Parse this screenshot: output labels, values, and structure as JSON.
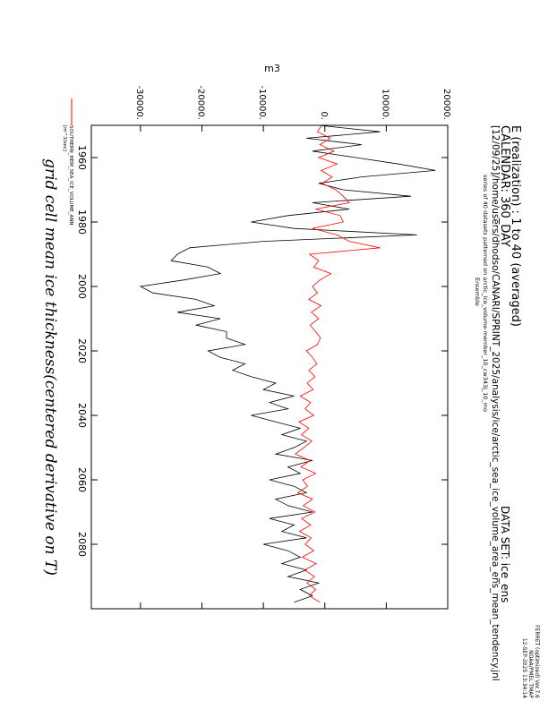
{
  "header": {
    "realization": "E (realization) : 1 to 40 (averaged)",
    "calendar": "CALENDAR: 360_DAY",
    "path": "[12/09/25]/home/users/dhodso/CANARI/SPRINT_2025/analysis/ice/arctic_sea_ice_volume_area_ens_mean_tendency.jnl",
    "series_note": "series of 40 datasets patterned on arctic_ice_volume-member_10_cw343j_10_mo",
    "ensemble": "Ensemble",
    "dataset": "DATA SET: ice_ens",
    "ferret_version": "FERRET (optimized) Ver.7.6",
    "ferret_env": "NOAA/PMEL TMAP",
    "ferret_date": "12-SEP-2025 13:34:14"
  },
  "legend": {
    "label": "SOUTHERN_HEM_SEA_ICE_VOLUME_ANN",
    "units": "[m^3/sec]"
  },
  "chart_data": {
    "type": "line",
    "title": "grid cell mean ice thickness(centered derivative on T)",
    "xlabel": "",
    "ylabel": "m3",
    "xlim": [
      1950,
      2100
    ],
    "ylim": [
      -38000,
      20000
    ],
    "x_ticks": [
      "1960",
      "1980",
      "2000",
      "2020",
      "2040",
      "2060",
      "2080"
    ],
    "x_tick_values": [
      1960,
      1980,
      2000,
      2020,
      2040,
      2060,
      2080
    ],
    "y_ticks": [
      "20000.",
      "10000.",
      "0.",
      "-10000.",
      "-20000.",
      "-30000."
    ],
    "y_tick_values": [
      20000,
      10000,
      0,
      -10000,
      -20000,
      -30000
    ],
    "x": [
      1950,
      1952,
      1954,
      1956,
      1958,
      1960,
      1962,
      1964,
      1966,
      1968,
      1970,
      1972,
      1974,
      1976,
      1978,
      1980,
      1982,
      1984,
      1986,
      1988,
      1990,
      1992,
      1994,
      1996,
      1998,
      2000,
      2002,
      2004,
      2006,
      2008,
      2010,
      2012,
      2014,
      2016,
      2018,
      2020,
      2022,
      2024,
      2026,
      2028,
      2030,
      2032,
      2034,
      2036,
      2038,
      2040,
      2042,
      2044,
      2046,
      2048,
      2050,
      2052,
      2054,
      2056,
      2058,
      2060,
      2062,
      2064,
      2066,
      2068,
      2070,
      2072,
      2074,
      2076,
      2078,
      2080,
      2082,
      2084,
      2086,
      2088,
      2090,
      2092,
      2094,
      2096,
      2098
    ],
    "series": [
      {
        "color": "#000000",
        "values": [
          -1000,
          9000,
          -3000,
          6000,
          -2000,
          5000,
          12000,
          18000,
          6000,
          -1000,
          3000,
          14000,
          -2000,
          4000,
          -6000,
          -12000,
          -5000,
          15000,
          -10000,
          -22000,
          -24000,
          -25000,
          -19000,
          -17000,
          -23000,
          -30000,
          -28000,
          -21000,
          -18000,
          -24000,
          -17000,
          -21000,
          -16000,
          -16000,
          -13000,
          -19000,
          -17000,
          -13000,
          -15000,
          -12000,
          -8000,
          -10000,
          -5000,
          -9000,
          -6000,
          -12000,
          -8000,
          -4000,
          -7000,
          -3000,
          -5000,
          -8000,
          -2000,
          -6000,
          -4000,
          -9000,
          -5000,
          -3000,
          -8000,
          -6000,
          -2000,
          -9000,
          -5000,
          -7000,
          -3000,
          -10000,
          -6000,
          -4000,
          -7000,
          -3000,
          -6000,
          -1000,
          -4000,
          -2000,
          -5000
        ]
      },
      {
        "color": "#ff0000",
        "values": [
          -500,
          -1200,
          900,
          -800,
          1500,
          -1000,
          2000,
          -600,
          1200,
          -400,
          1800,
          3000,
          4000,
          -1500,
          2500,
          3000,
          -2000,
          2000,
          4000,
          9000,
          -2500,
          -1000,
          -1800,
          1000,
          -800,
          -2000,
          -1200,
          -2600,
          -600,
          -2200,
          -1000,
          -2400,
          -1500,
          -700,
          -1200,
          -3000,
          -2000,
          -1300,
          -2600,
          -1600,
          -2900,
          -1900,
          -4000,
          -2300,
          -3200,
          -1800,
          -4200,
          -2600,
          -3800,
          -2100,
          -3400,
          -4800,
          -2400,
          -3900,
          -1500,
          -3600,
          -2800,
          -4400,
          -2000,
          -3500,
          -1600,
          -3800,
          -2300,
          -4100,
          -2200,
          -3200,
          -1800,
          -3700,
          -1400,
          -3300,
          -1700,
          -2900,
          -1500,
          -2500,
          -800
        ]
      }
    ],
    "grid": false
  }
}
